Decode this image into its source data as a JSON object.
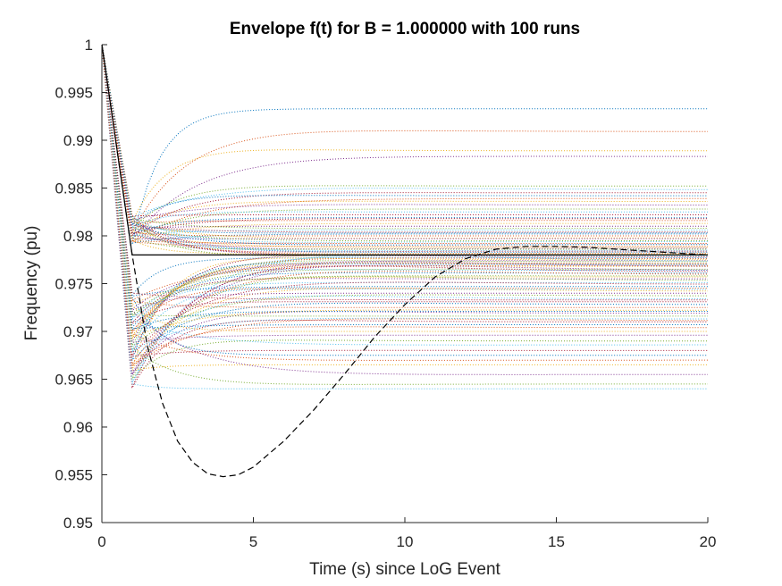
{
  "chart_data": {
    "type": "line",
    "title": "Envelope f(t) for B = 1.000000 with 100 runs",
    "xlabel": "Time (s) since LoG Event",
    "ylabel": "Frequency (pu)",
    "xlim": [
      0,
      20
    ],
    "ylim": [
      0.95,
      1
    ],
    "xticks": [
      0,
      5,
      10,
      15,
      20
    ],
    "xtick_labels": [
      "0",
      "5",
      "10",
      "15",
      "20"
    ],
    "yticks": [
      0.95,
      0.955,
      0.96,
      0.965,
      0.97,
      0.975,
      0.98,
      0.985,
      0.99,
      0.995,
      1
    ],
    "ytick_labels": [
      "0.95",
      "0.955",
      "0.96",
      "0.965",
      "0.97",
      "0.975",
      "0.98",
      "0.985",
      "0.99",
      "0.995",
      "1"
    ],
    "grid": false,
    "legend": "none",
    "reference_series": {
      "style": "solid black",
      "x": [
        0,
        1,
        20
      ],
      "y": [
        1.0,
        0.978,
        0.978
      ]
    },
    "nominal_response_series": {
      "style": "dashed black",
      "x": [
        0,
        1,
        1.5,
        2,
        2.5,
        3,
        3.5,
        4,
        4.5,
        5,
        6,
        7,
        8,
        9,
        10,
        11,
        12,
        13,
        14,
        15,
        16,
        17,
        18,
        19,
        20
      ],
      "y": [
        1.0,
        0.978,
        0.9685,
        0.9625,
        0.9585,
        0.9563,
        0.9551,
        0.9548,
        0.955,
        0.9558,
        0.9585,
        0.9618,
        0.9655,
        0.9694,
        0.9728,
        0.9757,
        0.9776,
        0.9786,
        0.9789,
        0.9789,
        0.9788,
        0.9786,
        0.9784,
        0.9782,
        0.978
      ]
    },
    "runs": {
      "count": 100,
      "style": "dotted, multicolored",
      "settle_values": [
        0.9933,
        0.9909,
        0.9889,
        0.9883,
        0.9852,
        0.9848,
        0.9845,
        0.9842,
        0.9839,
        0.9836,
        0.9832,
        0.9828,
        0.9825,
        0.9822,
        0.9819,
        0.9816,
        0.9813,
        0.981,
        0.9808,
        0.9806,
        0.9804,
        0.9802,
        0.98,
        0.9798,
        0.9797,
        0.9795,
        0.9794,
        0.9792,
        0.9791,
        0.9789,
        0.9788,
        0.9787,
        0.9786,
        0.9785,
        0.9784,
        0.9783,
        0.9782,
        0.9781,
        0.978,
        0.978,
        0.9779,
        0.9778,
        0.9777,
        0.9776,
        0.9775,
        0.9774,
        0.9773,
        0.9772,
        0.9771,
        0.977,
        0.9769,
        0.9768,
        0.9767,
        0.9765,
        0.9764,
        0.9762,
        0.9761,
        0.9759,
        0.9757,
        0.9755,
        0.9753,
        0.9751,
        0.9749,
        0.9747,
        0.9745,
        0.9742,
        0.974,
        0.9737,
        0.9734,
        0.9731,
        0.9728,
        0.9725,
        0.9722,
        0.9719,
        0.9716,
        0.9713,
        0.971,
        0.9707,
        0.9704,
        0.97,
        0.9696,
        0.969,
        0.9686,
        0.968,
        0.9675,
        0.967,
        0.9665,
        0.9655,
        0.9645,
        0.964,
        0.9818,
        0.9803,
        0.9792,
        0.9771,
        0.9763,
        0.9758,
        0.9744,
        0.9733,
        0.9721,
        0.9711
      ],
      "colors": [
        "#0072BD",
        "#D95319",
        "#EDB120",
        "#7E2F8E",
        "#77AC30",
        "#4DBEEE",
        "#A2142F"
      ]
    }
  }
}
